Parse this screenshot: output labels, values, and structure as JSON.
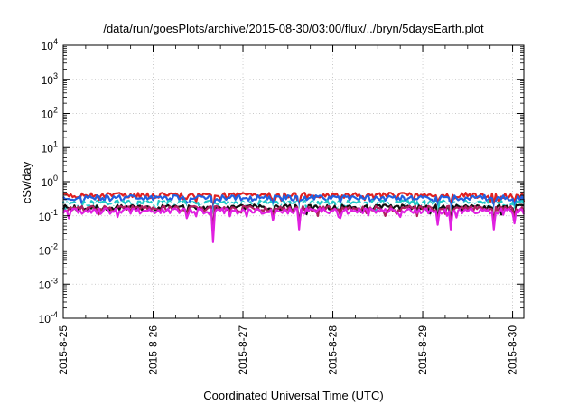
{
  "chart_data": {
    "type": "line",
    "title": "/data/run/goesPlots/archive/2015-08-30/03:00/flux/../bryn/5daysEarth.plot",
    "xlabel": "Coordinated Universal Time (UTC)",
    "ylabel": "cSv/day",
    "yscale": "log",
    "ylim": [
      0.0001,
      10000
    ],
    "xlim": [
      "2015-08-25",
      "2015-08-30 03:00"
    ],
    "grid": true,
    "legend": "none",
    "x_ticks": [
      "2015-8-25",
      "2015-8-26",
      "2015-8-27",
      "2015-8-28",
      "2015-8-29",
      "2015-8-30"
    ],
    "y_ticks": [
      {
        "value": 0.0001,
        "base": "10",
        "exp": "-4"
      },
      {
        "value": 0.001,
        "base": "10",
        "exp": "-3"
      },
      {
        "value": 0.01,
        "base": "10",
        "exp": "-2"
      },
      {
        "value": 0.1,
        "base": "10",
        "exp": "-1"
      },
      {
        "value": 1,
        "base": "10",
        "exp": "0"
      },
      {
        "value": 10,
        "base": "10",
        "exp": "1"
      },
      {
        "value": 100,
        "base": "10",
        "exp": "2"
      },
      {
        "value": 1000,
        "base": "10",
        "exp": "3"
      },
      {
        "value": 10000,
        "base": "10",
        "exp": "4"
      }
    ],
    "series": [
      {
        "color": "#e02020",
        "base": 0.4,
        "dip_scale": 0.5
      },
      {
        "color": "#2060e0",
        "base": 0.34,
        "dip_scale": 0.6
      },
      {
        "color": "#20c8c8",
        "base": 0.24,
        "dip_scale": 0.7
      },
      {
        "color": "#ffffff",
        "base": 0.21,
        "dip_scale": 0.7
      },
      {
        "color": "#101010",
        "base": 0.18,
        "dip_scale": 0.8
      },
      {
        "color": "#b02060",
        "base": 0.165,
        "dip_scale": 0.9
      },
      {
        "color": "#e020e0",
        "base": 0.14,
        "dip_scale": 1.0
      }
    ],
    "dips": [
      {
        "date": "2015-08-26T16:00",
        "value": 0.017
      },
      {
        "date": "2015-08-26T09:00",
        "value": 0.085
      },
      {
        "date": "2015-08-27T08:00",
        "value": 0.075
      },
      {
        "date": "2015-08-27T15:00",
        "value": 0.04
      },
      {
        "date": "2015-08-28T02:00",
        "value": 0.085
      },
      {
        "date": "2015-08-29T04:00",
        "value": 0.055
      },
      {
        "date": "2015-08-29T07:30",
        "value": 0.04
      },
      {
        "date": "2015-08-29T19:00",
        "value": 0.04
      },
      {
        "date": "2015-08-30T00:30",
        "value": 0.06
      }
    ]
  }
}
